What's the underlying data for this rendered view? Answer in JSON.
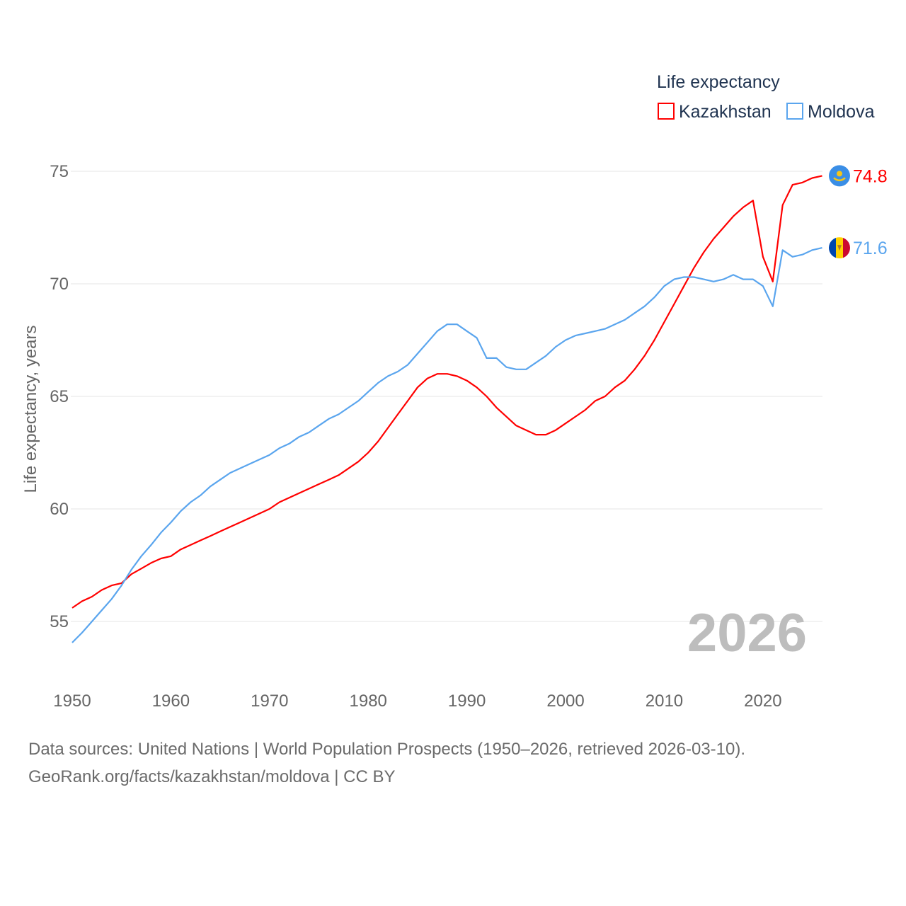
{
  "chart_data": {
    "type": "line",
    "title": "Life expectancy",
    "xlabel": "",
    "ylabel": "Life expectancy, years",
    "xlim": [
      1950,
      2026
    ],
    "ylim": [
      53.5,
      76.5
    ],
    "x_ticks": [
      "1950",
      "1960",
      "1970",
      "1980",
      "1990",
      "2000",
      "2010",
      "2020"
    ],
    "y_ticks": [
      "55",
      "60",
      "65",
      "70",
      "75"
    ],
    "grid": true,
    "legend_placement": "top-right",
    "watermark_year": "2026",
    "x": [
      1950,
      1951,
      1952,
      1953,
      1954,
      1955,
      1956,
      1957,
      1958,
      1959,
      1960,
      1961,
      1962,
      1963,
      1964,
      1965,
      1966,
      1967,
      1968,
      1969,
      1970,
      1971,
      1972,
      1973,
      1974,
      1975,
      1976,
      1977,
      1978,
      1979,
      1980,
      1981,
      1982,
      1983,
      1984,
      1985,
      1986,
      1987,
      1988,
      1989,
      1990,
      1991,
      1992,
      1993,
      1994,
      1995,
      1996,
      1997,
      1998,
      1999,
      2000,
      2001,
      2002,
      2003,
      2004,
      2005,
      2006,
      2007,
      2008,
      2009,
      2010,
      2011,
      2012,
      2013,
      2014,
      2015,
      2016,
      2017,
      2018,
      2019,
      2020,
      2021,
      2022,
      2023,
      2024,
      2025,
      2026
    ],
    "series": [
      {
        "name": "Kazakhstan",
        "color": "#ff0000",
        "end_label": "74.8",
        "flag": "kazakhstan-flag",
        "values": [
          55.6,
          55.9,
          56.1,
          56.4,
          56.6,
          56.7,
          57.1,
          57.35,
          57.6,
          57.8,
          57.9,
          58.2,
          58.4,
          58.6,
          58.8,
          59.0,
          59.2,
          59.4,
          59.6,
          59.8,
          60.0,
          60.3,
          60.5,
          60.7,
          60.9,
          61.1,
          61.3,
          61.5,
          61.8,
          62.1,
          62.5,
          63.0,
          63.6,
          64.2,
          64.8,
          65.4,
          65.8,
          66.0,
          66.0,
          65.9,
          65.7,
          65.4,
          65.0,
          64.5,
          64.1,
          63.7,
          63.5,
          63.3,
          63.3,
          63.5,
          63.8,
          64.1,
          64.4,
          64.8,
          65.0,
          65.4,
          65.7,
          66.2,
          66.8,
          67.5,
          68.3,
          69.1,
          69.9,
          70.7,
          71.4,
          72.0,
          72.5,
          73.0,
          73.4,
          73.7,
          71.2,
          70.1,
          73.5,
          74.4,
          74.5,
          74.7,
          74.8
        ]
      },
      {
        "name": "Moldova",
        "color": "#5aa5ee",
        "end_label": "71.6",
        "flag": "moldova-flag",
        "values": [
          54.06,
          54.5,
          55.0,
          55.5,
          56.0,
          56.6,
          57.3,
          57.9,
          58.4,
          58.95,
          59.4,
          59.9,
          60.3,
          60.6,
          61.0,
          61.3,
          61.6,
          61.8,
          62.0,
          62.2,
          62.4,
          62.7,
          62.9,
          63.2,
          63.4,
          63.7,
          64.0,
          64.2,
          64.5,
          64.8,
          65.2,
          65.6,
          65.9,
          66.1,
          66.4,
          66.9,
          67.4,
          67.9,
          68.2,
          68.2,
          67.9,
          67.6,
          66.7,
          66.7,
          66.3,
          66.2,
          66.2,
          66.5,
          66.8,
          67.2,
          67.5,
          67.7,
          67.8,
          67.9,
          68.0,
          68.2,
          68.4,
          68.7,
          69.0,
          69.4,
          69.9,
          70.2,
          70.3,
          70.3,
          70.2,
          70.1,
          70.2,
          70.4,
          70.2,
          70.2,
          69.9,
          69.0,
          71.5,
          71.2,
          71.3,
          71.5,
          71.6
        ]
      }
    ]
  },
  "footer": {
    "line1": "Data sources: United Nations | World Population Prospects (1950–2026, retrieved 2026-03-10).",
    "line2": "GeoRank.org/facts/kazakhstan/moldova | CC BY"
  }
}
